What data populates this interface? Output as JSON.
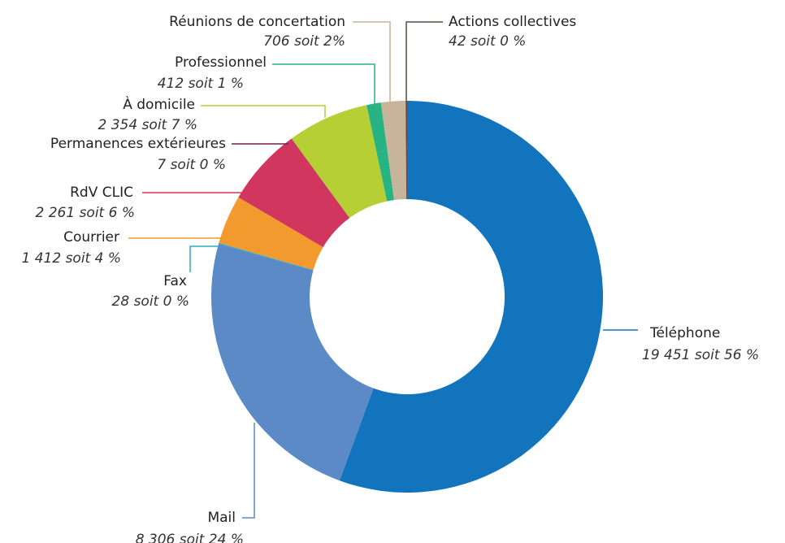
{
  "chart_data": {
    "type": "donut",
    "categories": [
      "Téléphone",
      "Mail",
      "Fax",
      "Courrier",
      "RdV CLIC",
      "Permanences extérieures",
      "À domicile",
      "Professionnel",
      "Réunions de concertation",
      "Actions collectives"
    ],
    "values": [
      19451,
      8306,
      28,
      1412,
      2261,
      7,
      2354,
      412,
      706,
      42
    ],
    "value_labels": [
      "19 451 soit 56 %",
      "8 306 soit 24 %",
      "28 soit 0 %",
      "1 412 soit 4 %",
      "2 261 soit 6 %",
      "7 soit 0 %",
      "2 354 soit 7 %",
      "412 soit 1 %",
      "706 soit 2%",
      "42 soit 0 %"
    ],
    "colors": [
      "#1274bd",
      "#5b8ac6",
      "#2aaec4",
      "#f39a2e",
      "#d1365f",
      "#7a1e4a",
      "#b5cf35",
      "#27b382",
      "#c7b49a",
      "#5a4a42"
    ]
  }
}
